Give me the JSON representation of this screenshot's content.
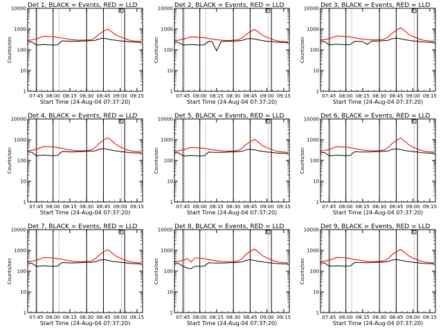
{
  "chart_data": {
    "type": "line",
    "layout": "3x3 grid",
    "ylabel": "Counts/sec",
    "xlabel": "Start Time (24-Aug-04 07:37:20)",
    "y_scale": "log",
    "ylim": [
      1,
      10000
    ],
    "y_ticks": [
      "1",
      "10",
      "100",
      "1000",
      "10000"
    ],
    "x_ticks": [
      "07:45",
      "08:00",
      "08:15",
      "08:30",
      "08:45",
      "09:00",
      "09:15"
    ],
    "xlim": [
      "07:37:20",
      "09:20"
    ],
    "grid": false,
    "colors": {
      "events": "#000000",
      "lld": "#ff0000"
    },
    "x": [
      "07:37",
      "07:41",
      "07:45",
      "07:49",
      "07:52",
      "07:56",
      "08:00",
      "08:04",
      "08:08",
      "08:11",
      "08:15",
      "08:19",
      "08:23",
      "08:26",
      "08:30",
      "08:34",
      "08:38",
      "08:41",
      "08:45",
      "08:49",
      "08:53",
      "08:56",
      "09:00",
      "09:04",
      "09:08",
      "09:11",
      "09:15",
      "09:19"
    ],
    "panels": [
      {
        "title": "Det 1, BLACK = Events, RED = LLD",
        "events": [
          250,
          240,
          170,
          175,
          180,
          175,
          170,
          175,
          270,
          265,
          260,
          260,
          260,
          265,
          270,
          275,
          290,
          330,
          360,
          330,
          300,
          290,
          270,
          260,
          240,
          240,
          230,
          230
        ],
        "lld": [
          280,
          300,
          330,
          400,
          450,
          440,
          430,
          400,
          370,
          350,
          320,
          300,
          290,
          290,
          300,
          300,
          400,
          550,
          800,
          1000,
          700,
          520,
          420,
          350,
          290,
          270,
          260,
          250
        ],
        "markers": [
          "07:45",
          "08:00",
          "08:30",
          "08:45",
          "09:04"
        ]
      },
      {
        "title": "Det 2, BLACK = Events, RED = LLD",
        "events": [
          240,
          230,
          170,
          175,
          180,
          175,
          170,
          175,
          255,
          250,
          90,
          250,
          255,
          260,
          265,
          270,
          285,
          330,
          350,
          330,
          300,
          280,
          260,
          250,
          235,
          230,
          225,
          220
        ],
        "lld": [
          270,
          290,
          320,
          380,
          420,
          410,
          400,
          380,
          350,
          330,
          310,
          290,
          280,
          280,
          290,
          300,
          380,
          520,
          760,
          960,
          680,
          500,
          400,
          330,
          280,
          260,
          250,
          240
        ],
        "markers": [
          "07:45",
          "08:00",
          "08:30",
          "08:45",
          "09:04"
        ]
      },
      {
        "title": "Det 3, BLACK = Events, RED = LLD",
        "events": [
          255,
          250,
          175,
          180,
          185,
          180,
          175,
          180,
          260,
          255,
          250,
          180,
          260,
          265,
          270,
          275,
          290,
          340,
          370,
          340,
          305,
          290,
          270,
          260,
          240,
          235,
          230,
          225
        ],
        "lld": [
          290,
          310,
          340,
          410,
          460,
          450,
          440,
          410,
          380,
          350,
          330,
          310,
          300,
          300,
          310,
          320,
          420,
          600,
          880,
          1150,
          780,
          560,
          440,
          360,
          300,
          280,
          265,
          255
        ],
        "markers": [
          "07:45",
          "08:00",
          "08:30",
          "08:45",
          "09:04"
        ]
      },
      {
        "title": "Det 4, BLACK = Events, RED = LLD",
        "events": [
          260,
          250,
          170,
          175,
          180,
          175,
          170,
          175,
          270,
          265,
          260,
          260,
          265,
          270,
          275,
          280,
          295,
          340,
          380,
          340,
          310,
          290,
          270,
          260,
          240,
          235,
          230,
          225
        ],
        "lld": [
          290,
          310,
          350,
          420,
          470,
          460,
          450,
          420,
          380,
          350,
          320,
          300,
          290,
          290,
          300,
          320,
          440,
          650,
          950,
          1250,
          850,
          600,
          450,
          360,
          300,
          280,
          265,
          255
        ],
        "markers": [
          "07:45",
          "08:00",
          "08:30",
          "08:45",
          "09:04"
        ]
      },
      {
        "title": "Det 5, BLACK = Events, RED = LLD",
        "events": [
          240,
          235,
          165,
          170,
          175,
          170,
          165,
          170,
          255,
          250,
          245,
          245,
          250,
          255,
          260,
          265,
          280,
          320,
          350,
          320,
          290,
          275,
          255,
          245,
          230,
          225,
          220,
          215
        ],
        "lld": [
          270,
          290,
          320,
          380,
          420,
          410,
          400,
          380,
          350,
          330,
          310,
          290,
          280,
          280,
          290,
          300,
          390,
          560,
          820,
          1050,
          720,
          520,
          410,
          340,
          285,
          265,
          255,
          245
        ],
        "markers": [
          "07:45",
          "08:00",
          "08:30",
          "08:45",
          "09:04"
        ]
      },
      {
        "title": "Det 6, BLACK = Events, RED = LLD",
        "events": [
          250,
          240,
          170,
          175,
          180,
          175,
          170,
          175,
          265,
          260,
          255,
          255,
          260,
          265,
          270,
          275,
          290,
          335,
          370,
          335,
          300,
          285,
          265,
          255,
          235,
          230,
          225,
          220
        ],
        "lld": [
          285,
          305,
          340,
          410,
          460,
          450,
          440,
          410,
          375,
          350,
          320,
          300,
          290,
          290,
          300,
          315,
          430,
          630,
          920,
          1200,
          820,
          580,
          440,
          355,
          295,
          275,
          260,
          250
        ],
        "markers": [
          "07:45",
          "08:00",
          "08:30",
          "08:45",
          "09:04"
        ]
      },
      {
        "title": "Det 7, BLACK = Events, RED = LLD",
        "events": [
          245,
          240,
          170,
          175,
          180,
          175,
          170,
          175,
          260,
          255,
          250,
          250,
          255,
          260,
          265,
          270,
          285,
          330,
          360,
          330,
          300,
          285,
          265,
          255,
          235,
          230,
          225,
          220
        ],
        "lld": [
          280,
          300,
          330,
          400,
          450,
          440,
          430,
          400,
          370,
          340,
          315,
          295,
          285,
          285,
          295,
          305,
          400,
          580,
          840,
          1080,
          740,
          540,
          420,
          345,
          290,
          270,
          258,
          248
        ],
        "markers": [
          "07:45",
          "08:00",
          "08:30",
          "08:45",
          "09:04"
        ]
      },
      {
        "title": "Det 8, BLACK = Events, RED = LLD",
        "events": [
          240,
          235,
          170,
          140,
          130,
          175,
          170,
          175,
          255,
          250,
          245,
          245,
          250,
          255,
          260,
          265,
          280,
          325,
          355,
          325,
          295,
          280,
          260,
          250,
          232,
          228,
          222,
          218
        ],
        "lld": [
          275,
          295,
          330,
          400,
          280,
          430,
          420,
          395,
          360,
          335,
          312,
          292,
          282,
          282,
          292,
          302,
          410,
          620,
          900,
          1150,
          780,
          560,
          430,
          350,
          292,
          272,
          260,
          250
        ],
        "markers": [
          "07:45",
          "08:00",
          "08:30",
          "08:45",
          "09:04"
        ]
      },
      {
        "title": "Det 9, BLACK = Events, RED = LLD",
        "events": [
          250,
          245,
          172,
          177,
          182,
          177,
          172,
          177,
          265,
          260,
          255,
          255,
          260,
          265,
          270,
          275,
          290,
          335,
          365,
          335,
          302,
          287,
          267,
          257,
          237,
          232,
          227,
          222
        ],
        "lld": [
          285,
          305,
          340,
          405,
          455,
          445,
          435,
          405,
          372,
          345,
          318,
          298,
          288,
          288,
          298,
          310,
          410,
          600,
          860,
          1100,
          760,
          550,
          430,
          350,
          292,
          272,
          260,
          250
        ],
        "markers": [
          "07:45",
          "08:00",
          "08:30",
          "08:45",
          "09:04"
        ]
      }
    ]
  }
}
